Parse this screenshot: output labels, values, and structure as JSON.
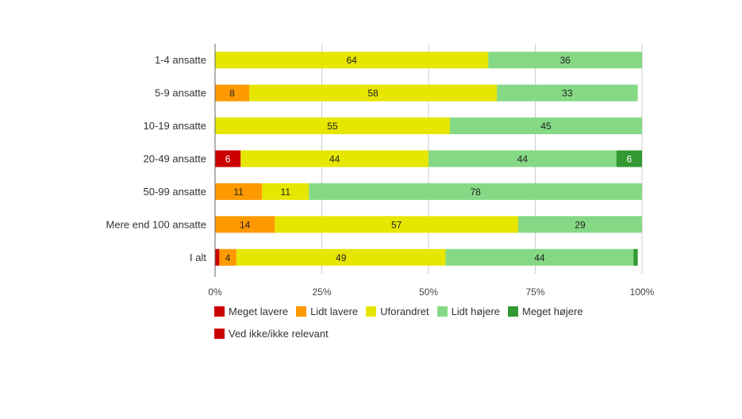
{
  "chart_data": {
    "type": "bar",
    "orientation": "horizontal",
    "stacked": true,
    "categories": [
      "1-4 ansatte",
      "5-9 ansatte",
      "10-19 ansatte",
      "20-49 ansatte",
      "50-99 ansatte",
      "Mere end 100 ansatte",
      "I alt"
    ],
    "series": [
      {
        "name": "Meget lavere",
        "color": "#cc0000",
        "values": [
          0,
          0,
          0,
          6,
          0,
          0,
          1
        ],
        "labels": [
          "",
          "",
          "",
          "6",
          "",
          "",
          ""
        ]
      },
      {
        "name": "Lidt lavere",
        "color": "#ff9900",
        "values": [
          0,
          8,
          0,
          0,
          11,
          14,
          4
        ],
        "labels": [
          "",
          "8",
          "",
          "",
          "11",
          "14",
          "4"
        ]
      },
      {
        "name": "Uforandret",
        "color": "#e6e600",
        "values": [
          64,
          58,
          55,
          44,
          11,
          57,
          49
        ],
        "labels": [
          "64",
          "58",
          "55",
          "44",
          "11",
          "57",
          "49"
        ]
      },
      {
        "name": "Lidt højere",
        "color": "#85d985",
        "values": [
          36,
          33,
          45,
          44,
          78,
          29,
          44
        ],
        "labels": [
          "36",
          "33",
          "45",
          "44",
          "78",
          "29",
          "44"
        ]
      },
      {
        "name": "Meget højere",
        "color": "#339933",
        "values": [
          0,
          0,
          0,
          6,
          0,
          0,
          1
        ],
        "labels": [
          "",
          "",
          "",
          "6",
          "",
          "",
          ""
        ]
      },
      {
        "name": "Ved ikke/ikke relevant",
        "color": "#cc0000",
        "values": [
          0,
          0,
          0,
          0,
          0,
          0,
          0
        ],
        "labels": [
          "",
          "",
          "",
          "",
          "",
          "",
          ""
        ]
      }
    ],
    "xlim": [
      0,
      100
    ],
    "x_ticks": [
      "0%",
      "25%",
      "50%",
      "75%",
      "100%"
    ],
    "x_tick_values": [
      0,
      25,
      50,
      75,
      100
    ],
    "grid": true,
    "legend_position": "bottom",
    "title": "",
    "xlabel": "",
    "ylabel": ""
  }
}
